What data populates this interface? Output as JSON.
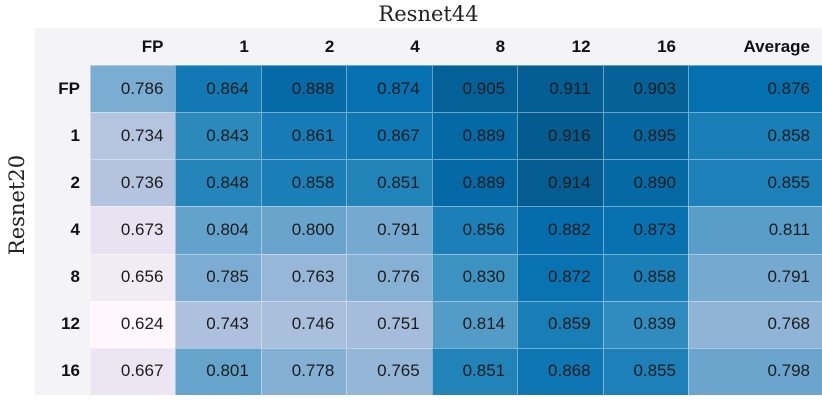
{
  "title": "Resnet44",
  "y_axis_label": "Resnet20",
  "chart_data": {
    "type": "heatmap",
    "title": "Resnet44",
    "ylabel": "Resnet20",
    "col_headers": [
      "FP",
      "1",
      "2",
      "4",
      "8",
      "12",
      "16",
      "Average"
    ],
    "row_headers": [
      "FP",
      "1",
      "2",
      "4",
      "8",
      "12",
      "16"
    ],
    "rows": [
      [
        0.786,
        0.864,
        0.888,
        0.874,
        0.905,
        0.911,
        0.903,
        0.876
      ],
      [
        0.734,
        0.843,
        0.861,
        0.867,
        0.889,
        0.916,
        0.895,
        0.858
      ],
      [
        0.736,
        0.848,
        0.858,
        0.851,
        0.889,
        0.914,
        0.89,
        0.855
      ],
      [
        0.673,
        0.804,
        0.8,
        0.791,
        0.856,
        0.882,
        0.873,
        0.811
      ],
      [
        0.656,
        0.785,
        0.763,
        0.776,
        0.83,
        0.872,
        0.858,
        0.791
      ],
      [
        0.624,
        0.743,
        0.746,
        0.751,
        0.814,
        0.859,
        0.839,
        0.768
      ],
      [
        0.667,
        0.801,
        0.778,
        0.765,
        0.851,
        0.868,
        0.855,
        0.798
      ]
    ],
    "value_format_decimals": 3,
    "colormap": {
      "name": "PuBu",
      "stops": [
        "#fff7fb",
        "#ece7f2",
        "#d0d1e6",
        "#a6bddb",
        "#74a9cf",
        "#3690c0",
        "#0570b0",
        "#045a8d",
        "#023858"
      ],
      "vmin": 0.624,
      "vmax": 0.916,
      "top_fraction": 0.87
    },
    "layout": {
      "header_bg": "#f4f3f5",
      "cell_text_color": "#1c1c1c",
      "header_text_color": "#111111",
      "page_bg": "#ffffff",
      "legend": "none",
      "grid": "subtle-white-lines"
    }
  }
}
